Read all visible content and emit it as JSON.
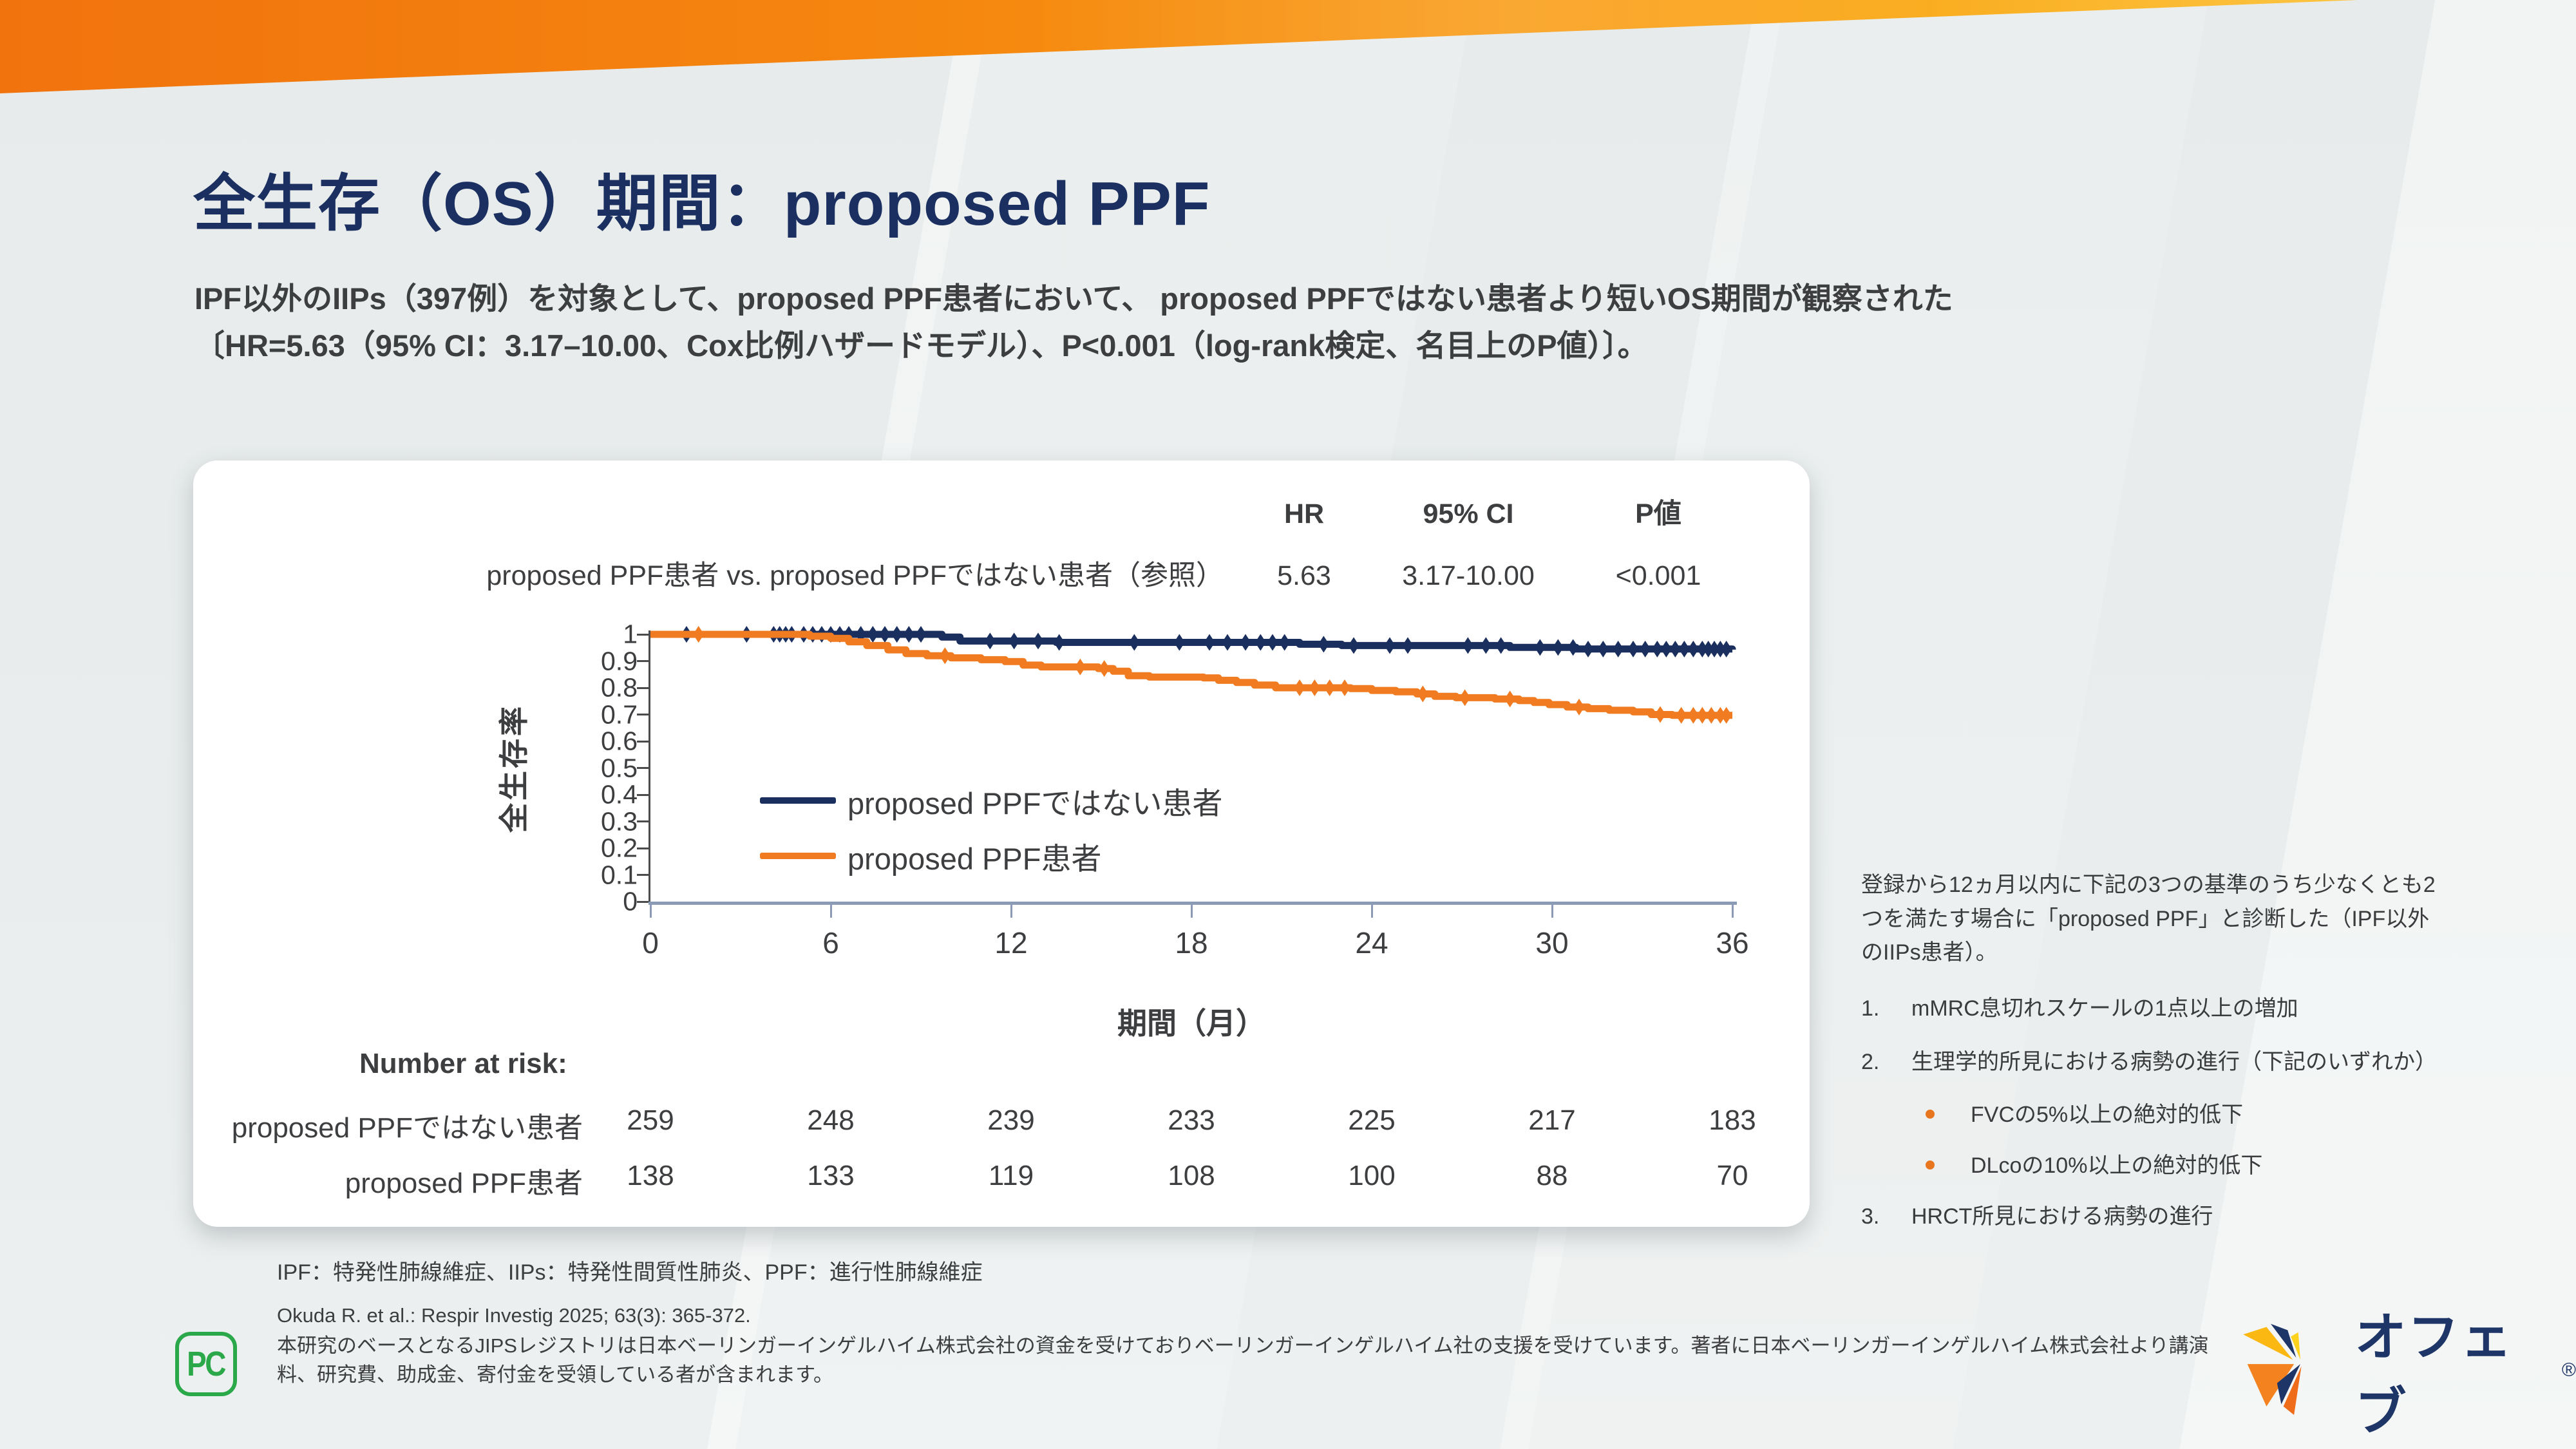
{
  "slide": {
    "title": "全生存（OS）期間：proposed PPF",
    "subtitle_line1": "IPF以外のIIPs（397例）を対象として、proposed PPF患者において、 proposed PPFではない患者より短いOS期間が観察された",
    "subtitle_line2": "〔HR=5.63（95% CI：3.17–10.00、Cox比例ハザードモデル）、P<0.001（log-rank検定、名目上のP値）〕。"
  },
  "stats": {
    "headers": {
      "hr": "HR",
      "ci": "95% CI",
      "p": "P値"
    },
    "row": {
      "label": "proposed PPF患者 vs. proposed PPFではない患者（参照）",
      "hr": "5.63",
      "ci": "3.17-10.00",
      "p": "<0.001"
    }
  },
  "chart_data": {
    "type": "line",
    "subtype": "kaplan-meier",
    "title": "",
    "xlabel": "期間（月）",
    "ylabel": "全生存率",
    "xlim": [
      0,
      36
    ],
    "ylim": [
      0,
      1
    ],
    "xticks": [
      0,
      6,
      12,
      18,
      24,
      30,
      36
    ],
    "ytick_labels": [
      "0",
      "0.1",
      "0.2",
      "0.3",
      "0.4",
      "0.5",
      "0.6",
      "0.7",
      "0.8",
      "0.9",
      "1"
    ],
    "grid": false,
    "legend_position": "inside-left",
    "axis_colors": {
      "y_axis": "#4b4b4b",
      "x_axis": "#8b9ab5"
    },
    "series": [
      {
        "name": "proposed PPFではない患者",
        "color": "#1a2f5e",
        "km_points": [
          [
            0,
            1
          ],
          [
            9.3,
            1
          ],
          [
            9.7,
            0.99
          ],
          [
            10.3,
            0.975
          ],
          [
            13.5,
            0.97
          ],
          [
            21.6,
            0.963
          ],
          [
            23,
            0.958
          ],
          [
            28.6,
            0.951
          ],
          [
            30.8,
            0.945
          ],
          [
            36,
            0.943
          ]
        ],
        "censor_x": [
          1.2,
          3.2,
          4.1,
          4.3,
          4.5,
          4.7,
          5.1,
          5.4,
          5.7,
          6.0,
          6.3,
          6.6,
          7.0,
          7.4,
          7.8,
          8.2,
          8.6,
          9.0,
          11.3,
          12.1,
          12.9,
          13.6,
          16.1,
          17.6,
          18.6,
          19.2,
          19.8,
          20.3,
          20.7,
          21.1,
          22.4,
          23.4,
          24.6,
          25.2,
          27.2,
          27.8,
          28.3,
          29.6,
          30.2,
          30.7,
          31.2,
          31.7,
          32.2,
          32.7,
          33.1,
          33.5,
          33.8,
          34.1,
          34.4,
          34.7,
          35.0,
          35.2,
          35.4,
          35.6,
          35.8
        ]
      },
      {
        "name": "proposed PPF患者",
        "color": "#f07b21",
        "km_points": [
          [
            0,
            1
          ],
          [
            4.8,
            1
          ],
          [
            5.3,
            0.993
          ],
          [
            6.0,
            0.985
          ],
          [
            6.6,
            0.972
          ],
          [
            7.2,
            0.958
          ],
          [
            7.9,
            0.942
          ],
          [
            8.5,
            0.928
          ],
          [
            9.2,
            0.92
          ],
          [
            10.0,
            0.912
          ],
          [
            11.0,
            0.905
          ],
          [
            11.8,
            0.898
          ],
          [
            12.4,
            0.885
          ],
          [
            13.0,
            0.878
          ],
          [
            14.9,
            0.872
          ],
          [
            15.4,
            0.862
          ],
          [
            15.9,
            0.845
          ],
          [
            16.6,
            0.84
          ],
          [
            18.4,
            0.837
          ],
          [
            18.9,
            0.828
          ],
          [
            19.5,
            0.82
          ],
          [
            20.1,
            0.81
          ],
          [
            20.8,
            0.8
          ],
          [
            23.3,
            0.797
          ],
          [
            24.0,
            0.79
          ],
          [
            24.8,
            0.785
          ],
          [
            25.5,
            0.777
          ],
          [
            26.1,
            0.768
          ],
          [
            26.8,
            0.763
          ],
          [
            28.1,
            0.758
          ],
          [
            28.9,
            0.752
          ],
          [
            29.4,
            0.745
          ],
          [
            29.9,
            0.737
          ],
          [
            30.5,
            0.728
          ],
          [
            31.2,
            0.722
          ],
          [
            31.9,
            0.716
          ],
          [
            32.7,
            0.71
          ],
          [
            33.3,
            0.7
          ],
          [
            34.0,
            0.697
          ],
          [
            36,
            0.697
          ]
        ],
        "censor_x": [
          1.6,
          9.8,
          14.3,
          15.1,
          21.6,
          22.1,
          22.6,
          23.1,
          25.7,
          27.1,
          28.6,
          30.9,
          33.6,
          34.3,
          34.7,
          35.0,
          35.3,
          35.6,
          35.8
        ]
      }
    ],
    "number_at_risk": {
      "label": "Number at risk:",
      "rows": [
        {
          "name": "proposed PPFではない患者",
          "values": [
            259,
            248,
            239,
            233,
            225,
            217,
            183
          ]
        },
        {
          "name": "proposed PPF患者",
          "values": [
            138,
            133,
            119,
            108,
            100,
            88,
            70
          ]
        }
      ]
    }
  },
  "criteria_panel": {
    "intro": "登録から12ヵ月以内に下記の3つの基準のうち少なくとも2つを満たす場合に「proposed PPF」と診断した（IPF以外のIIPs患者）。",
    "items": [
      {
        "num": "1.",
        "text": "mMRC息切れスケールの1点以上の増加"
      },
      {
        "num": "2.",
        "text": "生理学的所見における病勢の進行（下記のいずれか）",
        "subs": [
          "FVCの5%以上の絶対的低下",
          "DLcoの10%以上の絶対的低下"
        ]
      },
      {
        "num": "3.",
        "text": "HRCT所見における病勢の進行"
      }
    ],
    "bullet_color": "#e8761f"
  },
  "footnotes": {
    "abbreviations": "IPF：特発性肺線維症、IIPs：特発性間質性肺炎、PPF：進行性肺線維症",
    "reference": "Okuda R. et al.: Respir Investig 2025; 63(3): 365-372.",
    "funding": "本研究のベースとなるJIPSレジストリは日本ベーリンガーインゲルハイム株式会社の資金を受けておりベーリンガーインゲルハイム社の支援を受けています。著者に日本ベーリンガーインゲルハイム株式会社より講演料、研究費、助成金、寄付金を受領している者が含まれます。"
  },
  "logos": {
    "pc_label": "PC",
    "brand": "オフェブ",
    "registered": "®"
  },
  "colors": {
    "title_navy": "#1b3060",
    "band_left": "#f1730e",
    "band_right": "#fdc01c",
    "series_navy": "#1a2f5e",
    "series_orange": "#f07b21"
  }
}
